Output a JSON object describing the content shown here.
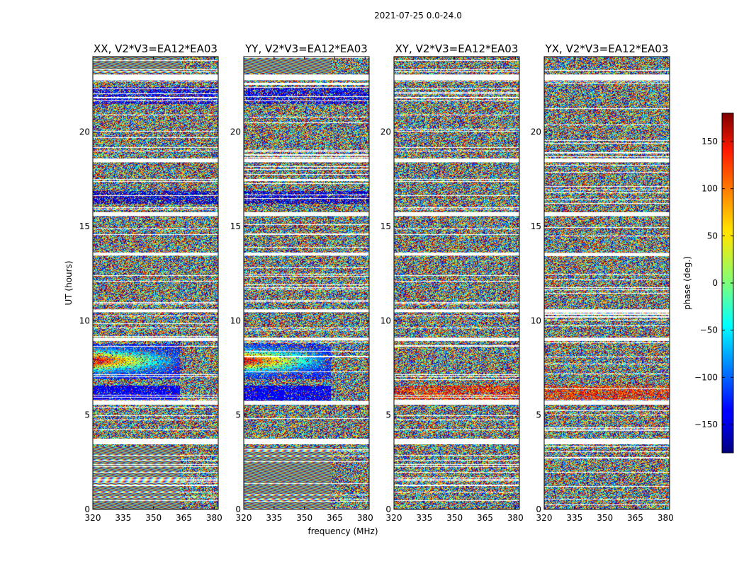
{
  "chart_data": {
    "type": "heatmap",
    "suptitle": "2021-07-25 0.0-24.0",
    "xlabel": "frequency (MHz)",
    "ylabel": "UT (hours)",
    "xlim": [
      320,
      382
    ],
    "ylim": [
      0,
      24
    ],
    "xticks": [
      320,
      335,
      350,
      365,
      380
    ],
    "yticks": [
      0,
      5,
      10,
      15,
      20
    ],
    "colormap": "jet",
    "colorbar": {
      "label": "phase (deg.)",
      "range": [
        -180,
        180
      ],
      "ticks": [
        150,
        100,
        50,
        0,
        -50,
        -100,
        -150
      ],
      "tick_labels": [
        "150",
        "100",
        "50",
        "0",
        "−50",
        "−100",
        "−150"
      ]
    },
    "flagged_ut_bands": [
      [
        3.45,
        3.75
      ],
      [
        5.55,
        5.75
      ],
      [
        8.95,
        9.1
      ],
      [
        10.45,
        10.6
      ],
      [
        13.45,
        13.6
      ],
      [
        15.55,
        15.75
      ],
      [
        18.4,
        18.6
      ],
      [
        22.75,
        23.05
      ]
    ],
    "panels": [
      {
        "title": "XX, V2*V3=EA12*EA03",
        "polarization": "XX"
      },
      {
        "title": "YY, V2*V3=EA12*EA03",
        "polarization": "YY"
      },
      {
        "title": "XY, V2*V3=EA12*EA03",
        "polarization": "XY"
      },
      {
        "title": "YX, V2*V3=EA12*EA03",
        "polarization": "YX"
      }
    ]
  }
}
